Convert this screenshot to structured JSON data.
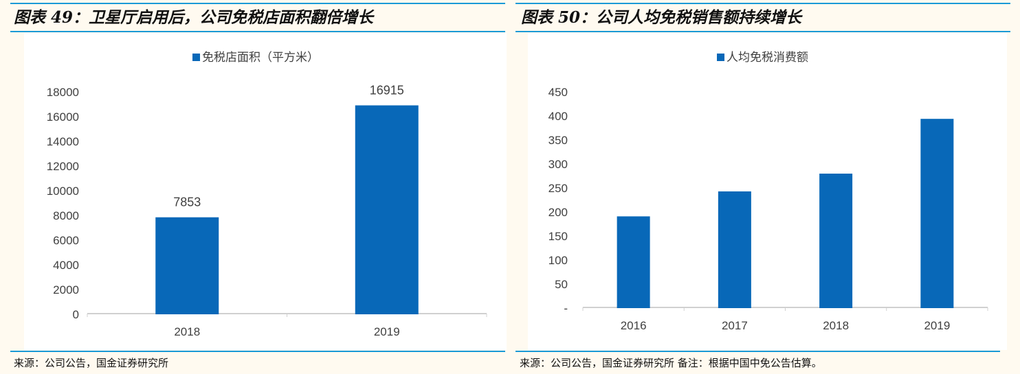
{
  "left": {
    "title": "图表 49：卫星厅启用后，公司免税店面积翻倍增长",
    "source": "来源：公司公告，国金证券研究所"
  },
  "right": {
    "title": "图表 50：公司人均免税销售额持续增长",
    "source": "来源：公司公告，国金证券研究所  备注：根据中国中免公告估算。"
  },
  "colors": {
    "bar": "#0868b8",
    "rule": "#1a9ad6"
  },
  "chart_data": [
    {
      "type": "bar",
      "legend": "免税店面积（平方米）",
      "legend_position": "top",
      "categories": [
        "2018",
        "2019"
      ],
      "values": [
        7853,
        16915
      ],
      "data_labels": [
        "7853",
        "16915"
      ],
      "ylim": [
        0,
        18000
      ],
      "yticks": [
        "0",
        "2000",
        "4000",
        "6000",
        "8000",
        "10000",
        "12000",
        "14000",
        "16000",
        "18000"
      ],
      "grid": false
    },
    {
      "type": "bar",
      "legend": "人均免税消费额",
      "legend_position": "top",
      "categories": [
        "2016",
        "2017",
        "2018",
        "2019"
      ],
      "values": [
        191,
        243,
        280,
        394
      ],
      "ylim": [
        0,
        450
      ],
      "yticks": [
        "-",
        "50",
        "100",
        "150",
        "200",
        "250",
        "300",
        "350",
        "400",
        "450"
      ],
      "grid": false
    }
  ]
}
